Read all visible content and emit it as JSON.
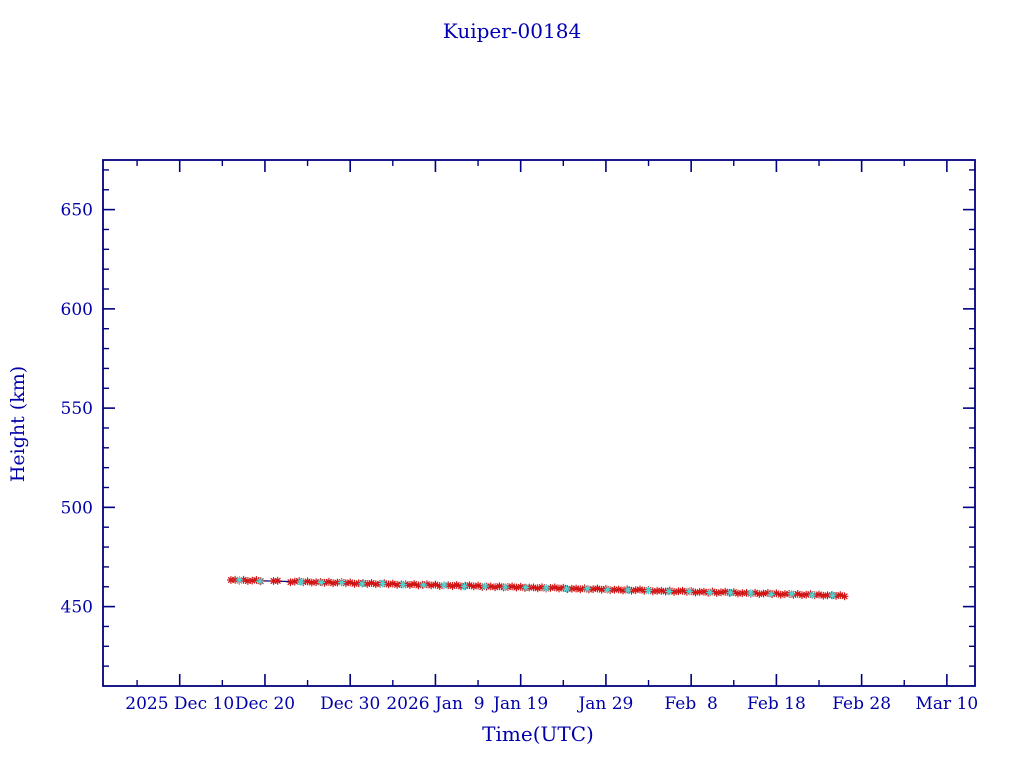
{
  "page": {
    "background": "#ffffff"
  },
  "colors": {
    "title_text": "#0000b4",
    "axis_line": "#000080",
    "tick_text": "#0000a8",
    "red_marker": "#d21414",
    "cyan_marker": "#4fd2d2",
    "trend_line": "#00008b"
  },
  "chart_data": {
    "type": "scatter",
    "title": "Kuiper-00184",
    "xlabel": "Time(UTC)",
    "ylabel": "Height (km)",
    "grid": false,
    "legend": "none",
    "x_axis": {
      "unit": "days since 2025-12-01 00:00 UTC",
      "xlim_days": [
        0,
        102.3
      ],
      "major_ticks": [
        {
          "day": 9,
          "label": "2025 Dec 10"
        },
        {
          "day": 19,
          "label": "Dec 20"
        },
        {
          "day": 29,
          "label": "Dec 30"
        },
        {
          "day": 39,
          "label": "2026 Jan  9"
        },
        {
          "day": 49,
          "label": "Jan 19"
        },
        {
          "day": 59,
          "label": "Jan 29"
        },
        {
          "day": 69,
          "label": "Feb  8"
        },
        {
          "day": 79,
          "label": "Feb 18"
        },
        {
          "day": 89,
          "label": "Feb 28"
        },
        {
          "day": 99,
          "label": "Mar 10"
        }
      ],
      "minor_tick_days": [
        4,
        14,
        24,
        34,
        44,
        54,
        64,
        74,
        84,
        94
      ]
    },
    "y_axis": {
      "ylim": [
        410,
        675
      ],
      "major_ticks": [
        450,
        500,
        550,
        600,
        650
      ],
      "minor_tick_step": 10
    },
    "series": [
      {
        "name": "height-trend-line",
        "type": "line",
        "color_key": "trend_line",
        "points": [
          [
            15,
            463.4
          ],
          [
            87,
            455.5
          ]
        ]
      },
      {
        "name": "height-observed-red",
        "type": "scatter",
        "marker": "asterisk",
        "color_key": "red_marker",
        "start_day": 15,
        "step_days": 0.5,
        "heights": [
          463.4,
          463.5,
          463.1,
          463.5,
          462.9,
          463.1,
          463.4,
          462.8,
          null,
          null,
          462.9,
          463.0,
          null,
          null,
          462.3,
          462.6,
          462.9,
          462.3,
          462.7,
          462.1,
          462.3,
          462.4,
          462.0,
          462.5,
          461.8,
          462.1,
          462.4,
          461.8,
          462.2,
          461.5,
          461.8,
          461.9,
          461.4,
          461.9,
          461.3,
          461.5,
          461.8,
          461.2,
          461.6,
          461.0,
          461.2,
          461.3,
          460.9,
          461.4,
          460.7,
          461.0,
          461.3,
          460.7,
          461.1,
          460.4,
          460.7,
          460.8,
          460.4,
          460.9,
          460.2,
          460.5,
          460.8,
          460.2,
          460.6,
          459.9,
          460.1,
          460.2,
          459.8,
          460.3,
          459.7,
          459.9,
          460.2,
          459.6,
          460.0,
          459.4,
          459.6,
          459.7,
          459.2,
          459.8,
          459.1,
          459.4,
          459.7,
          459.1,
          459.5,
          458.8,
          459.0,
          459.1,
          458.7,
          459.2,
          458.6,
          458.8,
          459.1,
          458.5,
          458.9,
          458.3,
          458.5,
          458.6,
          458.1,
          458.7,
          458.0,
          458.3,
          458.6,
          458.0,
          458.4,
          457.7,
          457.9,
          458.0,
          457.6,
          458.1,
          457.4,
          457.7,
          458.0,
          457.4,
          457.8,
          457.1,
          457.4,
          457.5,
          457.0,
          457.6,
          456.9,
          457.2,
          457.5,
          456.9,
          457.3,
          456.6,
          456.8,
          456.9,
          456.5,
          457.0,
          456.3,
          456.6,
          456.9,
          456.3,
          456.7,
          456.0,
          456.3,
          456.4,
          455.9,
          456.4,
          455.8,
          456.0,
          456.3,
          455.7,
          456.1,
          455.5,
          455.7,
          455.8,
          455.4,
          455.8,
          455.2
        ]
      },
      {
        "name": "height-predicted-cyan",
        "type": "scatter",
        "marker": "asterisk",
        "color_key": "cyan_marker",
        "days": [
          16.0,
          18.4,
          23.2,
          25.6,
          28.0,
          30.4,
          32.8,
          35.2,
          37.6,
          40.0,
          42.4,
          44.8,
          47.2,
          49.6,
          52.0,
          54.4,
          56.8,
          59.2,
          61.6,
          64.0,
          66.4,
          68.8,
          71.2,
          73.6,
          76.0,
          78.4,
          80.8,
          83.2,
          85.6
        ],
        "heights": [
          463.4,
          462.8,
          462.4,
          462.2,
          462.1,
          461.5,
          461.6,
          461.1,
          460.9,
          460.8,
          460.2,
          460.3,
          459.8,
          459.6,
          459.4,
          458.9,
          459.0,
          458.5,
          458.3,
          458.1,
          457.6,
          457.7,
          457.1,
          457.0,
          456.8,
          456.2,
          456.4,
          455.8,
          455.7
        ]
      }
    ]
  }
}
